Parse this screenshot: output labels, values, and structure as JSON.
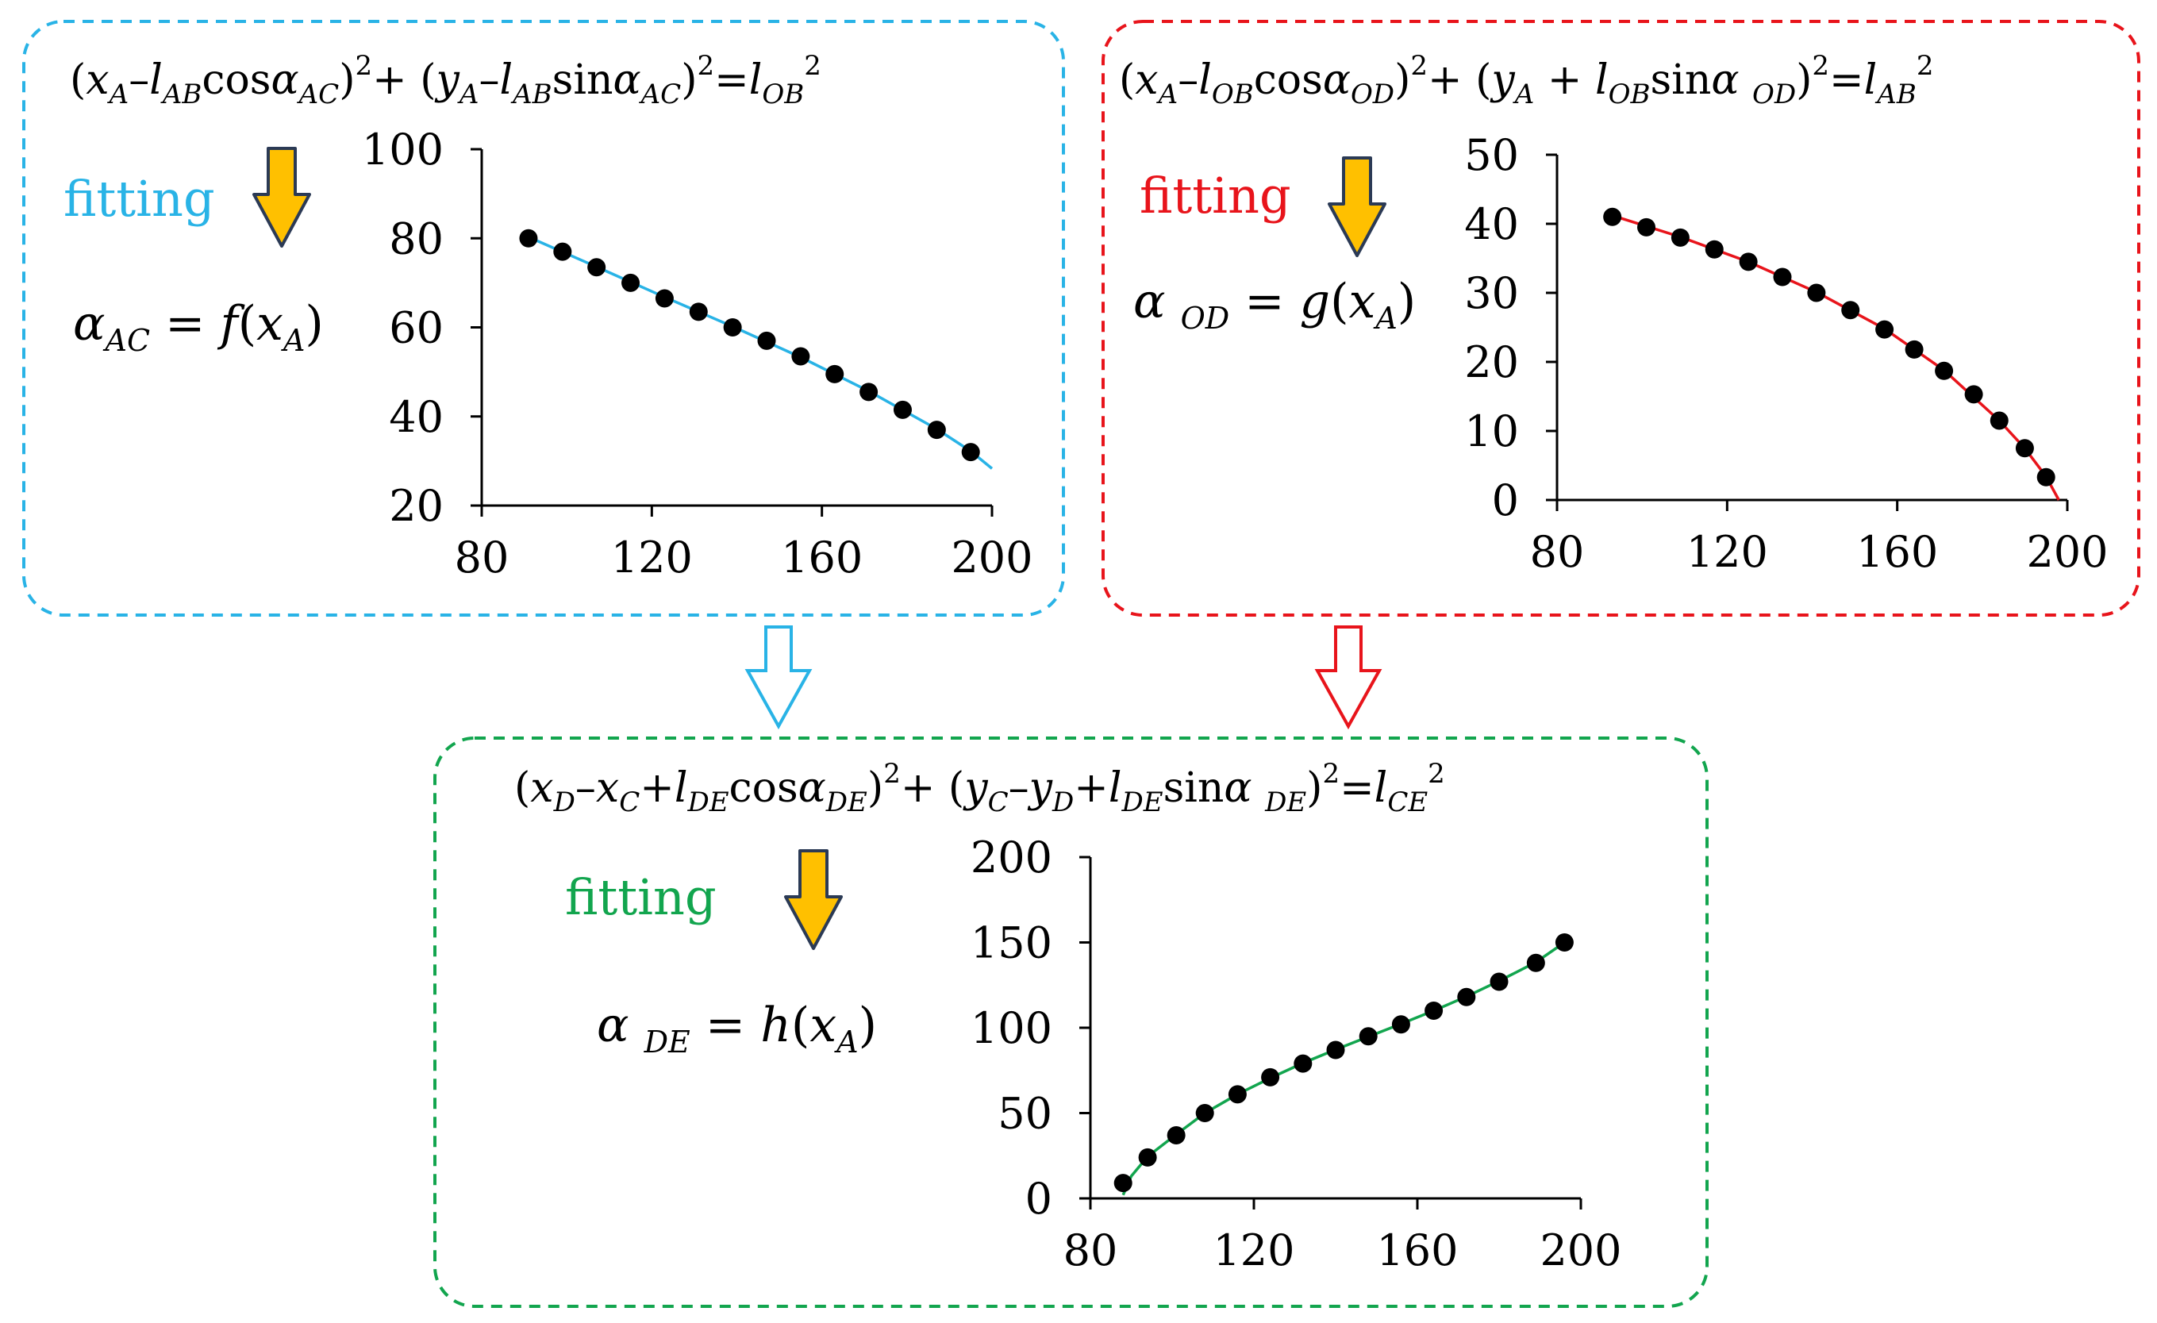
{
  "colors": {
    "ac": "#29B3E6",
    "od": "#E8141B",
    "de": "#12A54E",
    "arrow_fill": "#FFC000",
    "arrow_stroke": "#2B3A55",
    "marker": "#000000"
  },
  "panels": {
    "ac": {
      "equation": {
        "p1": "(",
        "x": "x",
        "sA1": "A",
        "m1": "–",
        "l1": "l",
        "sAB": "AB",
        "f1": "cos",
        "a1": "α",
        "sAC1": "AC",
        "c1": ")",
        "sq1": "2",
        "plus": "+ (",
        "y": "y",
        "sA2": "A",
        "m2": "–",
        "l2": "l",
        "sAB2": "AB",
        "f2": "sin",
        "a2": "α",
        "sAC2": "AC",
        "c2": ")",
        "sq2": "2",
        "eq": "=",
        "l3": "l",
        "sOB": "OB",
        "sq3": "2"
      },
      "fitting": "fitting",
      "result": {
        "alpha": "α",
        "sub": "AC",
        "eq": " = ",
        "fn": "f",
        "open": "(",
        "x": "x",
        "xsub": "A",
        "close": ")"
      },
      "icon": "down-arrow-icon"
    },
    "od": {
      "equation": {
        "p1": "(",
        "x": "x",
        "sA1": "A",
        "m1": "–",
        "l1": "l",
        "sOB": "OB",
        "f1": "cos",
        "a1": "α",
        "sOD1": "OD",
        "c1": ")",
        "sq1": "2",
        "plus": "+ (",
        "y": "y",
        "sA2": "A",
        "pl": " + ",
        "l2": "l",
        "sOB2": "OB",
        "f2": "sin",
        "a2": "α ",
        "sOD2": "OD",
        "c2": ")",
        "sq2": "2",
        "eq": "=",
        "l3": "l",
        "sAB": "AB",
        "sq3": "2"
      },
      "fitting": "fitting",
      "result": {
        "alpha": "α ",
        "sub": "OD",
        "eq": " = ",
        "fn": "g",
        "open": "(",
        "x": "x",
        "xsub": "A",
        "close": ")"
      },
      "icon": "down-arrow-icon"
    },
    "de": {
      "equation": {
        "p1": "(",
        "x1": "x",
        "sD1": "D",
        "m1": "–",
        "x2": "x",
        "sC1": "C",
        "pl1": "+",
        "l1": "l",
        "sDE1": "DE",
        "f1": "cos",
        "a1": "α",
        "sDE2": "DE",
        "c1": ")",
        "sq1": "2",
        "plus": "+ (",
        "y1": "y",
        "sC2": "C",
        "m2": "–",
        "y2": "y",
        "sD2": "D",
        "pl2": "+",
        "l2": "l",
        "sDE3": "DE",
        "f2": "sin",
        "a2": "α ",
        "sDE4": "DE",
        "c2": ")",
        "sq2": "2",
        "eq": "=",
        "l3": "l",
        "sCE": "CE",
        "sq3": "2"
      },
      "fitting": "fitting",
      "result": {
        "alpha": "α ",
        "sub": "DE",
        "eq": " = ",
        "fn": "h",
        "open": "(",
        "x": "x",
        "xsub": "A",
        "close": ")"
      },
      "icon": "down-arrow-icon"
    }
  },
  "flow_arrows": [
    "hollow-down-arrow-icon",
    "hollow-down-arrow-icon"
  ],
  "chart_data": [
    {
      "id": "ac",
      "type": "scatter",
      "title": "",
      "xlabel": "",
      "ylabel": "",
      "xlim": [
        80,
        200
      ],
      "ylim": [
        20,
        100
      ],
      "xticks": [
        "80",
        "120",
        "160",
        "200"
      ],
      "yticks": [
        "20",
        "40",
        "60",
        "80",
        "100"
      ],
      "series": [
        {
          "name": "data",
          "x": [
            91,
            99,
            107,
            115,
            123,
            131,
            139,
            147,
            155,
            163,
            171,
            179,
            187,
            195
          ],
          "y": [
            80,
            77,
            73.5,
            70,
            66.5,
            63.5,
            60,
            57,
            53.5,
            49.5,
            45.5,
            41.5,
            37,
            32
          ]
        },
        {
          "name": "fit",
          "x": [
            91,
            107,
            123,
            139,
            155,
            171,
            187,
            195,
            200
          ],
          "y": [
            80.3,
            73.6,
            66.8,
            60.2,
            53.3,
            45.7,
            37.2,
            32.2,
            28.3
          ]
        }
      ]
    },
    {
      "id": "od",
      "type": "scatter",
      "title": "",
      "xlabel": "",
      "ylabel": "",
      "xlim": [
        80,
        200
      ],
      "ylim": [
        0,
        50
      ],
      "xticks": [
        "80",
        "120",
        "160",
        "200"
      ],
      "yticks": [
        "0",
        "10",
        "20",
        "30",
        "40",
        "50"
      ],
      "series": [
        {
          "name": "data",
          "x": [
            93,
            101,
            109,
            117,
            125,
            133,
            141,
            149,
            157,
            164,
            171,
            178,
            184,
            190,
            195
          ],
          "y": [
            41,
            39.5,
            38,
            36.3,
            34.5,
            32.3,
            30,
            27.5,
            24.7,
            21.8,
            18.7,
            15.3,
            11.5,
            7.5,
            3.3
          ]
        },
        {
          "name": "fit",
          "x": [
            93,
            109,
            125,
            141,
            157,
            171,
            184,
            190,
            195,
            198
          ],
          "y": [
            41.2,
            38.1,
            34.5,
            30.1,
            24.8,
            18.8,
            11.5,
            7.5,
            3.4,
            0
          ]
        }
      ]
    },
    {
      "id": "de",
      "type": "scatter",
      "title": "",
      "xlabel": "",
      "ylabel": "",
      "xlim": [
        80,
        200
      ],
      "ylim": [
        0,
        200
      ],
      "xticks": [
        "80",
        "120",
        "160",
        "200"
      ],
      "yticks": [
        "0",
        "50",
        "100",
        "150",
        "200"
      ],
      "series": [
        {
          "name": "data",
          "x": [
            88,
            94,
            101,
            108,
            116,
            124,
            132,
            140,
            148,
            156,
            164,
            172,
            180,
            189,
            196
          ],
          "y": [
            9,
            24,
            37,
            50,
            61,
            71,
            79,
            87,
            95,
            102,
            110,
            118,
            127,
            138,
            150
          ]
        },
        {
          "name": "fit",
          "x": [
            88,
            90,
            94,
            101,
            108,
            116,
            124,
            132,
            140,
            148,
            156,
            164,
            172,
            180,
            189,
            196
          ],
          "y": [
            2,
            13,
            24.5,
            37.5,
            50,
            61,
            70.5,
            79.3,
            87.2,
            94.8,
            102.3,
            110,
            118.3,
            127.4,
            138.4,
            150
          ]
        }
      ]
    }
  ]
}
